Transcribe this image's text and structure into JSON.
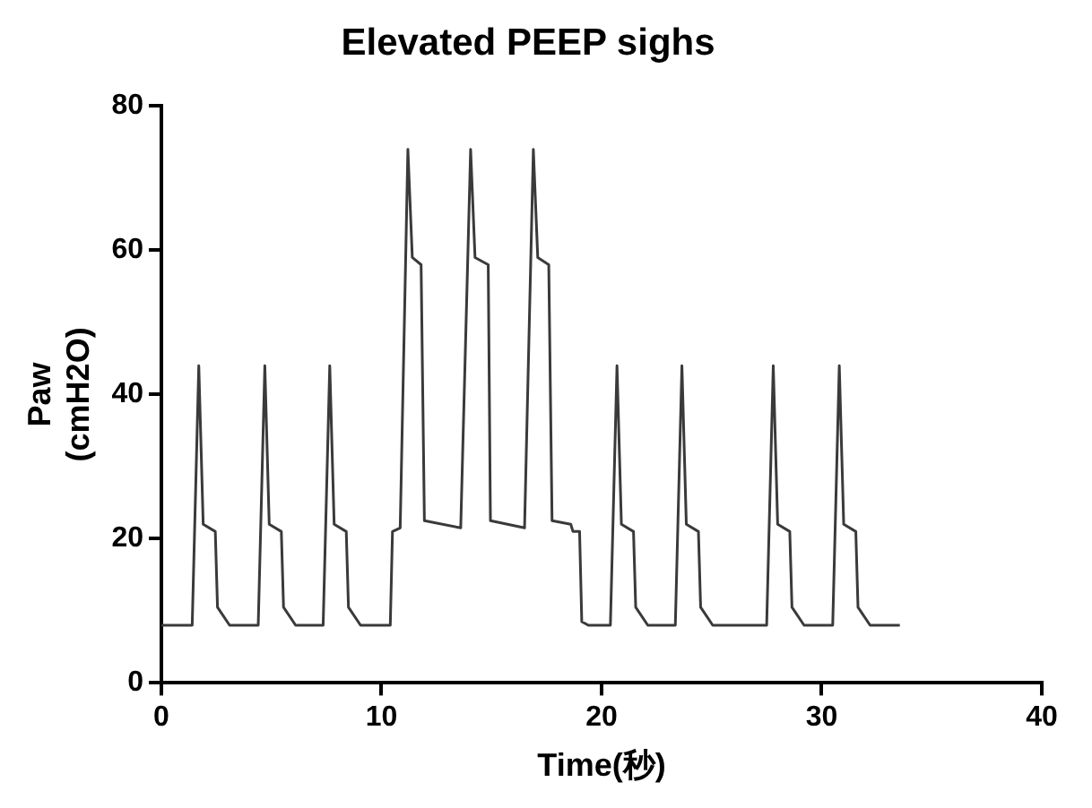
{
  "chart_data": {
    "type": "line",
    "title": "Elevated PEEP sighs",
    "xlabel": "Time(秒)",
    "ylabel": "Paw\n(cmH2O)",
    "xlim": [
      0,
      40
    ],
    "xticks": [
      0,
      10,
      20,
      30,
      40
    ],
    "ylim": [
      0,
      80
    ],
    "yticks": [
      0,
      20,
      40,
      60,
      80
    ],
    "grid": false,
    "legend": false,
    "marker": "none",
    "line_style": "solid",
    "series": [
      {
        "color": "#3a3a3a",
        "x": [
          0,
          1.4,
          1.7,
          1.9,
          2.45,
          2.55,
          3.1,
          4.4,
          4.7,
          4.9,
          5.45,
          5.55,
          6.1,
          7.35,
          7.65,
          7.85,
          8.4,
          8.5,
          9.05,
          10.4,
          10.5,
          10.85,
          11.2,
          11.4,
          11.8,
          11.95,
          13.6,
          14.05,
          14.25,
          14.85,
          14.95,
          16.5,
          16.9,
          17.1,
          17.6,
          17.75,
          18.6,
          18.7,
          19.0,
          19.1,
          19.4,
          20.4,
          20.7,
          20.9,
          21.45,
          21.55,
          22.1,
          23.35,
          23.65,
          23.85,
          24.4,
          24.5,
          25.05,
          27.5,
          27.8,
          28.0,
          28.55,
          28.65,
          29.2,
          30.5,
          30.8,
          31.0,
          31.55,
          31.65,
          32.2,
          33.55
        ],
        "values": [
          8,
          8,
          44,
          22,
          21,
          10.5,
          8,
          8,
          44,
          22,
          21,
          10.5,
          8,
          8,
          44,
          22,
          21,
          10.5,
          8,
          8,
          21,
          21.5,
          74,
          59,
          58,
          22.5,
          21.5,
          74,
          59,
          58,
          22.5,
          21.5,
          74,
          59,
          58,
          22.5,
          22,
          21,
          21,
          8.5,
          8,
          8,
          44,
          22,
          21,
          10.5,
          8,
          8,
          44,
          22,
          21,
          10.5,
          8,
          8,
          44,
          22,
          21,
          10.5,
          8,
          8,
          44,
          22,
          21,
          10.5,
          8,
          8
        ]
      }
    ]
  }
}
